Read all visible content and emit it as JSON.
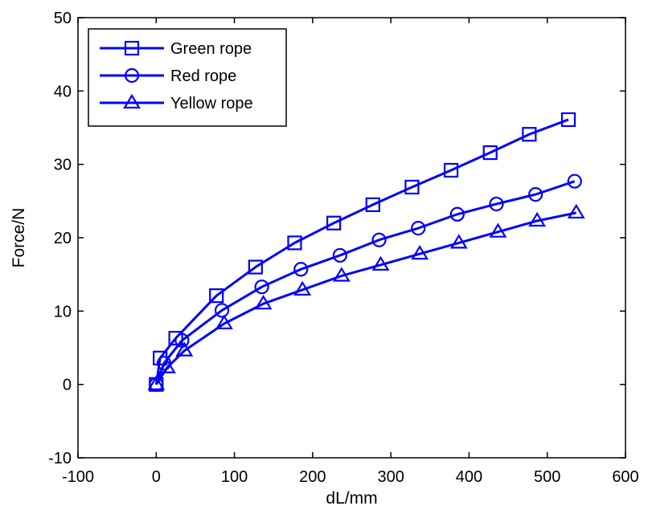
{
  "chart_data": {
    "type": "line",
    "title": "",
    "xlabel": "dL/mm",
    "ylabel": "Force/N",
    "xlim": [
      -100,
      600
    ],
    "ylim": [
      -10,
      50
    ],
    "xticks": [
      -100,
      0,
      100,
      200,
      300,
      400,
      500,
      600
    ],
    "yticks": [
      -10,
      0,
      10,
      20,
      30,
      40,
      50
    ],
    "xtick_labels": [
      "-100",
      "0",
      "100",
      "200",
      "300",
      "400",
      "500",
      "600"
    ],
    "ytick_labels": [
      "-10",
      "0",
      "10",
      "20",
      "30",
      "40",
      "50"
    ],
    "grid": false,
    "legend_position": "top-left",
    "line_color": "#0000ff",
    "series": [
      {
        "name": "Green rope",
        "marker": "square",
        "x": [
          0,
          5,
          25,
          77,
          127,
          177,
          227,
          277,
          327,
          377,
          427,
          477,
          527
        ],
        "y": [
          0,
          3.6,
          6.3,
          12.1,
          16,
          19.3,
          22,
          24.5,
          26.9,
          29.2,
          31.6,
          34.1,
          36.1
        ]
      },
      {
        "name": "Red rope",
        "marker": "circle",
        "x": [
          0,
          10,
          33,
          84,
          135,
          185,
          235,
          285,
          335,
          385,
          435,
          485,
          535
        ],
        "y": [
          0,
          2.9,
          6,
          10.1,
          13.3,
          15.7,
          17.6,
          19.7,
          21.3,
          23.2,
          24.6,
          25.9,
          27.7
        ]
      },
      {
        "name": "Yellow rope",
        "marker": "triangle",
        "x": [
          0,
          14,
          36,
          87,
          137,
          187,
          237,
          287,
          337,
          387,
          437,
          487,
          537
        ],
        "y": [
          0,
          2.3,
          4.6,
          8.3,
          11,
          12.9,
          14.8,
          16.3,
          17.8,
          19.3,
          20.8,
          22.3,
          23.4
        ]
      }
    ]
  }
}
